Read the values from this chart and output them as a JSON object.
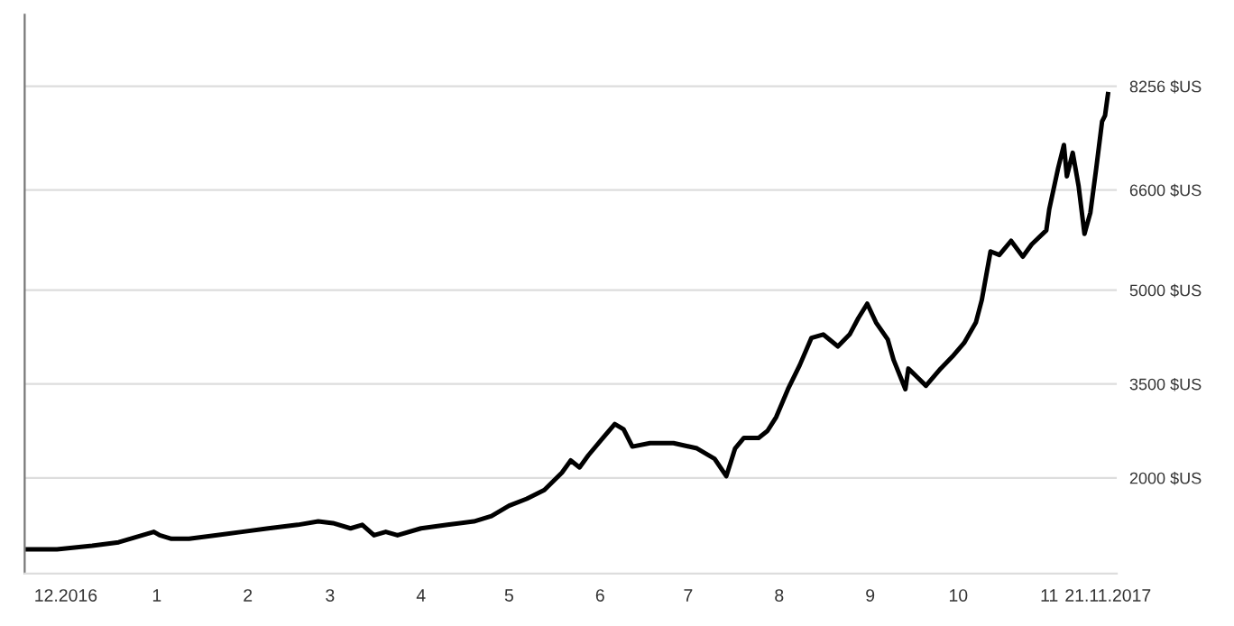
{
  "chart_data": {
    "type": "line",
    "x": [
      "2016-11-18",
      "2016-11-28",
      "2016-12-10",
      "2016-12-19",
      "2016-12-25",
      "2016-12-31",
      "2017-01-02",
      "2017-01-06",
      "2017-01-12",
      "2017-01-21",
      "2017-01-30",
      "2017-02-08",
      "2017-02-18",
      "2017-02-25",
      "2017-03-02",
      "2017-03-08",
      "2017-03-12",
      "2017-03-16",
      "2017-03-20",
      "2017-03-24",
      "2017-04-01",
      "2017-04-10",
      "2017-04-19",
      "2017-04-25",
      "2017-05-01",
      "2017-05-07",
      "2017-05-13",
      "2017-05-19",
      "2017-05-22",
      "2017-05-25",
      "2017-05-28",
      "2017-06-02",
      "2017-06-06",
      "2017-06-09",
      "2017-06-12",
      "2017-06-18",
      "2017-06-26",
      "2017-07-04",
      "2017-07-10",
      "2017-07-14",
      "2017-07-17",
      "2017-07-20",
      "2017-07-25",
      "2017-07-28",
      "2017-07-31",
      "2017-08-04",
      "2017-08-08",
      "2017-08-12",
      "2017-08-16",
      "2017-08-21",
      "2017-08-25",
      "2017-08-28",
      "2017-08-31",
      "2017-09-03",
      "2017-09-07",
      "2017-09-09",
      "2017-09-13",
      "2017-09-14",
      "2017-09-17",
      "2017-09-20",
      "2017-09-25",
      "2017-09-29",
      "2017-10-03",
      "2017-10-07",
      "2017-10-09",
      "2017-10-12",
      "2017-10-15",
      "2017-10-19",
      "2017-10-23",
      "2017-10-26",
      "2017-10-31",
      "2017-11-01",
      "2017-11-04",
      "2017-11-06",
      "2017-11-07",
      "2017-11-09",
      "2017-11-11",
      "2017-11-13",
      "2017-11-15",
      "2017-11-17",
      "2017-11-19",
      "2017-11-20",
      "2017-11-21"
    ],
    "series": [
      {
        "color": "#000000",
        "values": [
          860,
          860,
          916,
          971,
          1055,
          1138,
          1083,
          1027,
          1027,
          1083,
          1138,
          1194,
          1250,
          1305,
          1277,
          1194,
          1250,
          1083,
          1138,
          1083,
          1194,
          1250,
          1305,
          1389,
          1555,
          1666,
          1805,
          2083,
          2278,
          2167,
          2361,
          2639,
          2861,
          2778,
          2500,
          2556,
          2556,
          2472,
          2306,
          2028,
          2472,
          2639,
          2639,
          2750,
          2972,
          3417,
          3800,
          4237,
          4291,
          4100,
          4291,
          4555,
          4782,
          4482,
          4210,
          3882,
          3417,
          3746,
          3610,
          3472,
          3746,
          3937,
          4155,
          4482,
          4836,
          5618,
          5562,
          5787,
          5534,
          5730,
          5955,
          6291,
          6943,
          7318,
          6818,
          7194,
          6662,
          5899,
          6236,
          6943,
          7694,
          7787,
          8131
        ]
      }
    ],
    "ylim": [
      470,
      9400
    ],
    "yticks": [
      {
        "value": 2000,
        "label": "2000 $US"
      },
      {
        "value": 3500,
        "label": "3500 $US"
      },
      {
        "value": 5000,
        "label": "5000 $US"
      },
      {
        "value": 6600,
        "label": "6600 $US"
      },
      {
        "value": 8256,
        "label": "8256 $US"
      }
    ],
    "xlim": [
      "2016-11-17",
      "2017-11-24"
    ],
    "xticks": [
      {
        "value": "2016-12-01",
        "label": "12.2016"
      },
      {
        "value": "2017-01-01",
        "label": "1"
      },
      {
        "value": "2017-02-01",
        "label": "2"
      },
      {
        "value": "2017-03-01",
        "label": "3"
      },
      {
        "value": "2017-04-01",
        "label": "4"
      },
      {
        "value": "2017-05-01",
        "label": "5"
      },
      {
        "value": "2017-06-01",
        "label": "6"
      },
      {
        "value": "2017-07-01",
        "label": "7"
      },
      {
        "value": "2017-08-01",
        "label": "8"
      },
      {
        "value": "2017-09-01",
        "label": "9"
      },
      {
        "value": "2017-10-01",
        "label": "10"
      },
      {
        "value": "2017-11-01",
        "label": "11"
      },
      {
        "value": "2017-11-21",
        "label": "21.11.2017"
      }
    ],
    "grid": "y",
    "marker": "none",
    "line_style": "solid"
  }
}
